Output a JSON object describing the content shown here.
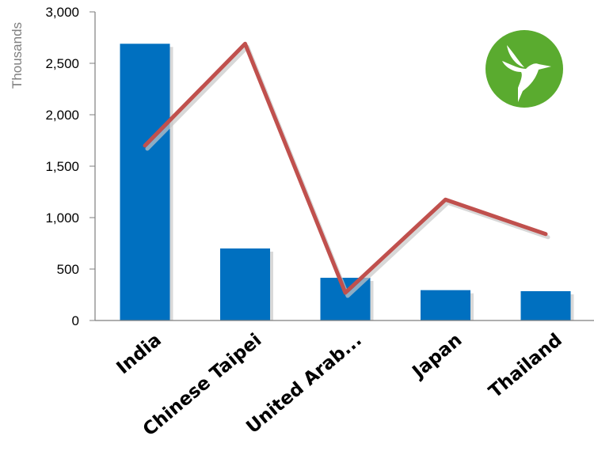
{
  "chart_data": {
    "type": "bar",
    "categories": [
      "India",
      "Chinese Taipei",
      "United Arab...",
      "Japan",
      "Thailand"
    ],
    "series": [
      {
        "type": "bar",
        "values": [
          2690,
          700,
          415,
          295,
          285
        ],
        "color": "#0070c0"
      },
      {
        "type": "line",
        "values": [
          1700,
          2690,
          270,
          1175,
          840
        ],
        "color": "#c0504d"
      }
    ],
    "ylabel": "Thousands",
    "ylim": [
      0,
      3000
    ],
    "yticks": [
      0,
      500,
      1000,
      1500,
      2000,
      2500,
      3000
    ],
    "ytick_labels": [
      "0",
      "500",
      "1,000",
      "1,500",
      "2,000",
      "2,500",
      "3,000"
    ],
    "grid": false,
    "logo": {
      "icon": "hummingbird-icon",
      "color": "#5aab2f"
    }
  }
}
